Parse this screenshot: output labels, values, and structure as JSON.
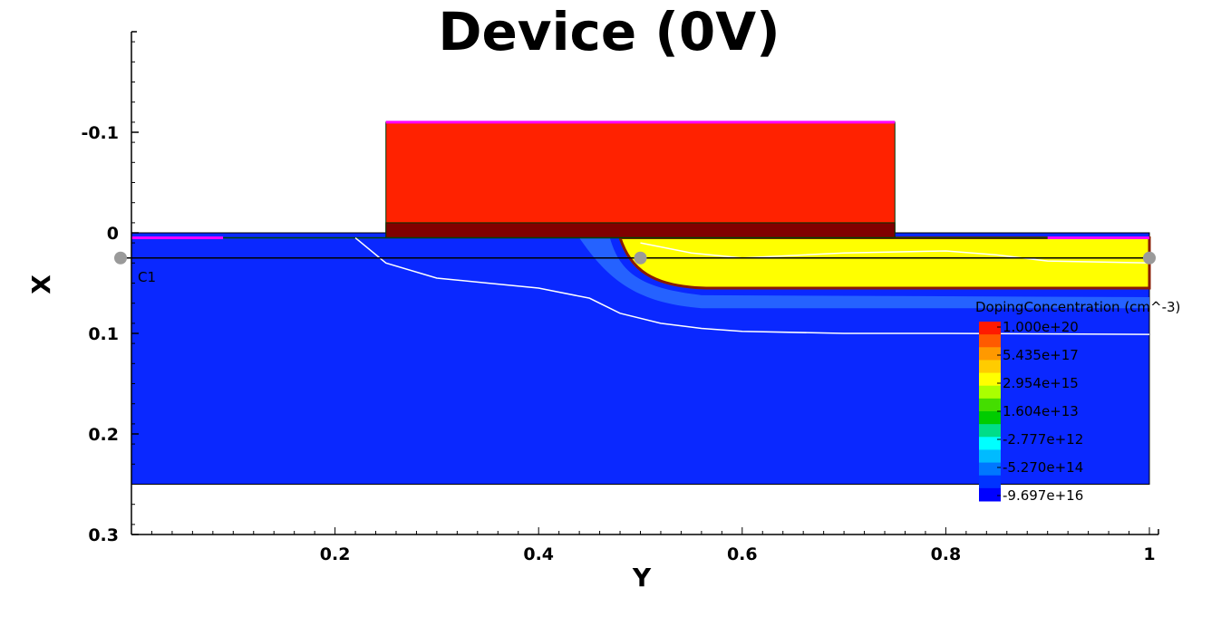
{
  "chart_data": {
    "type": "heatmap",
    "title": "Device (0V)",
    "xlabel": "Y",
    "ylabel": "X",
    "xlim": [
      0.0,
      1.0
    ],
    "ylim": [
      0.3,
      -0.2
    ],
    "y_axis_inverted": true,
    "x_ticks": [
      "0.2",
      "0.4",
      "0.6",
      "0.8",
      "1"
    ],
    "x_tick_values": [
      0.2,
      0.4,
      0.6,
      0.8,
      1.0
    ],
    "y_ticks": [
      "-0.1",
      "0",
      "0.1",
      "0.2",
      "0.3"
    ],
    "y_tick_values": [
      -0.1,
      0.0,
      0.1,
      0.2,
      0.3
    ],
    "grid": false,
    "legend": {
      "title": "DopingConcentration (cm^-3)",
      "placement": "right",
      "labels": [
        "1.000e+20",
        "5.435e+17",
        "2.954e+15",
        "1.604e+13",
        "-2.777e+12",
        "-5.270e+14",
        "-9.697e+16"
      ],
      "colors": [
        "#ff1a00",
        "#ff5a00",
        "#ff9900",
        "#ffcc00",
        "#ffff00",
        "#aaff00",
        "#44dd00",
        "#00cc00",
        "#00dd88",
        "#00ffff",
        "#00bbff",
        "#0077ff",
        "#0033ff",
        "#0000ff"
      ]
    },
    "regions": [
      {
        "name": "substrate",
        "y_range": [
          0.0,
          1.0
        ],
        "x_range": [
          0.0,
          0.25
        ],
        "color": "#0a28ff",
        "doping": "-9.697e+16"
      },
      {
        "name": "gate",
        "y_range": [
          0.25,
          0.75
        ],
        "x_range": [
          -0.11,
          0.0
        ],
        "color": "#ff2200",
        "doping": "1.000e+20"
      },
      {
        "name": "gate-oxide",
        "y_range": [
          0.25,
          0.75
        ],
        "x_range": [
          -0.01,
          0.005
        ],
        "color": "#800000"
      },
      {
        "name": "drain-n-region",
        "y_range": [
          0.48,
          1.0
        ],
        "x_range": [
          0.005,
          0.055
        ],
        "color": "#ffff00",
        "doping": "2.954e+15"
      }
    ],
    "junction_contour_1": {
      "y": [
        0.22,
        0.25,
        0.3,
        0.35,
        0.4,
        0.45,
        0.48,
        0.52,
        0.56,
        0.6,
        0.7,
        0.8,
        1.0
      ],
      "x": [
        0.005,
        0.03,
        0.045,
        0.05,
        0.055,
        0.065,
        0.08,
        0.09,
        0.095,
        0.098,
        0.1,
        0.1,
        0.101
      ]
    },
    "junction_contour_2": {
      "y": [
        0.5,
        0.55,
        0.6,
        0.7,
        0.8,
        0.85,
        0.9,
        1.0
      ],
      "x": [
        0.01,
        0.02,
        0.025,
        0.02,
        0.018,
        0.022,
        0.028,
        0.03
      ]
    },
    "cutline": {
      "name": "C1",
      "x": 0.025,
      "y_points": [
        0.0,
        0.5,
        1.0
      ]
    },
    "contacts": [
      {
        "name": "source",
        "y_range": [
          0.0,
          0.09
        ],
        "x": 0.005,
        "color": "#ff00ff"
      },
      {
        "name": "gate-top",
        "y_range": [
          0.25,
          0.75
        ],
        "x": -0.11,
        "color": "#ff00ff"
      },
      {
        "name": "drain",
        "y_range": [
          0.9,
          1.0
        ],
        "x": 0.005,
        "color": "#ff00ff"
      }
    ]
  }
}
